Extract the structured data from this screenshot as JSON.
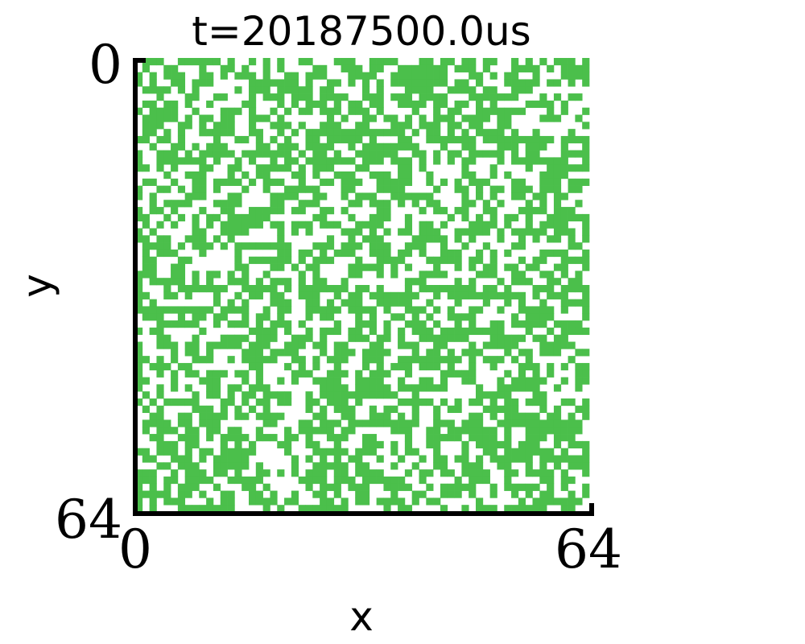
{
  "chart_data": {
    "type": "heatmap",
    "title": "t=20187500.0us",
    "xlabel": "x",
    "ylabel": "y",
    "xlim": [
      0,
      64
    ],
    "ylim": [
      64,
      0
    ],
    "x_ticks": [
      "0",
      "64"
    ],
    "y_ticks": [
      "0",
      "64"
    ],
    "grid_size": [
      64,
      64
    ],
    "cell_values": [
      0,
      1
    ],
    "colors": {
      "occupied": "#4bbf4b",
      "empty": "#ffffff",
      "axis": "#000000"
    },
    "grid": false,
    "legend": "none"
  }
}
